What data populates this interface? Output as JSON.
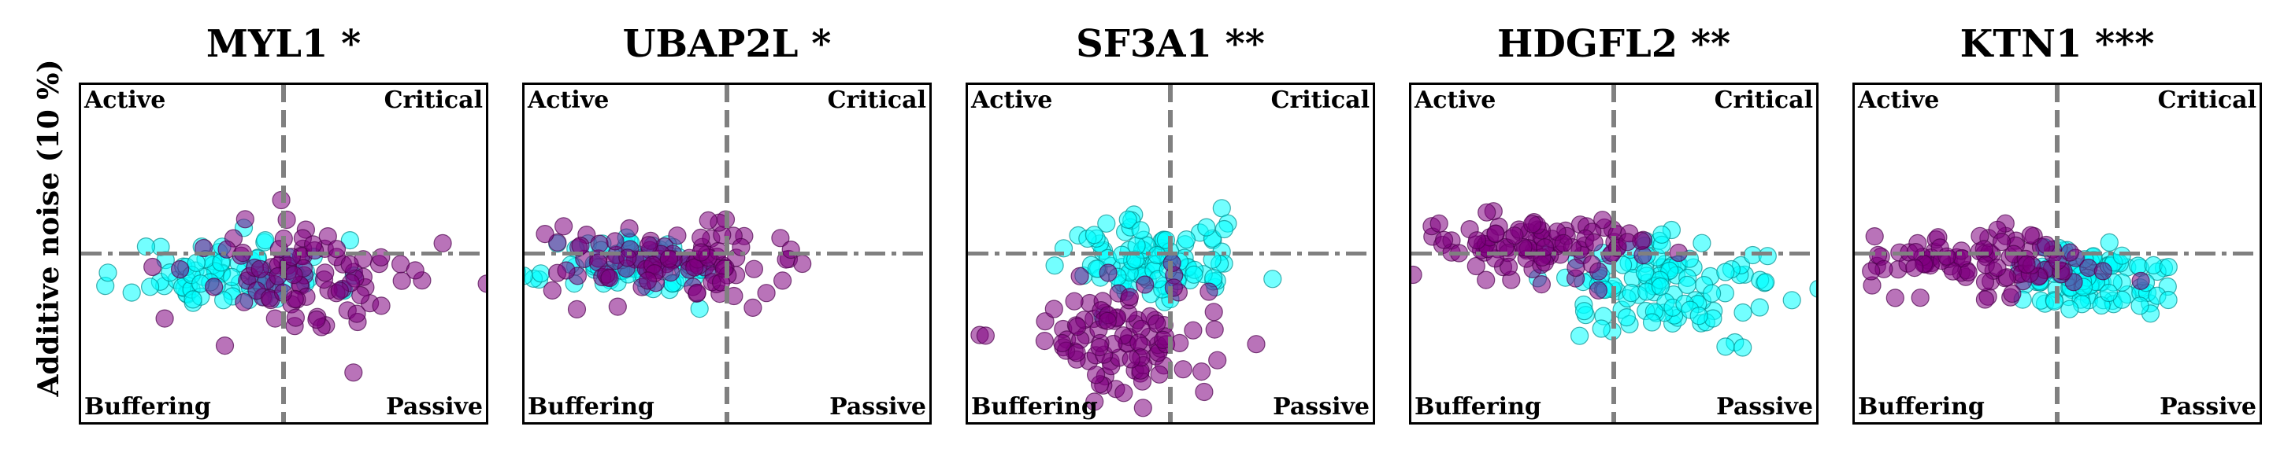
{
  "ylabel": "Additive noise (10 %)",
  "quadrants": {
    "top_left": "Active",
    "top_right": "Critical",
    "bottom_left": "Buffering",
    "bottom_right": "Passive"
  },
  "colors": {
    "series_a": "#00ffff",
    "series_b": "#800080",
    "reference_lines": "#808080"
  },
  "chart_data": [
    {
      "type": "scatter",
      "title": "MYL1 *",
      "xlim": [
        -1,
        1
      ],
      "ylim": [
        -1,
        1
      ],
      "reference_lines": {
        "x": 0,
        "y": 0
      },
      "clusters": [
        {
          "series": "a",
          "cx": -0.25,
          "cy": -0.12,
          "sx": 0.25,
          "sy": 0.1,
          "n": 90,
          "seed": 11
        },
        {
          "series": "b",
          "cx": 0.15,
          "cy": -0.15,
          "sx": 0.3,
          "sy": 0.18,
          "n": 90,
          "seed": 12
        }
      ]
    },
    {
      "type": "scatter",
      "title": "UBAP2L *",
      "xlim": [
        -1,
        1
      ],
      "ylim": [
        -1,
        1
      ],
      "reference_lines": {
        "x": 0,
        "y": 0
      },
      "clusters": [
        {
          "series": "a",
          "cx": -0.42,
          "cy": -0.08,
          "sx": 0.2,
          "sy": 0.08,
          "n": 80,
          "seed": 21
        },
        {
          "series": "b",
          "cx": -0.32,
          "cy": -0.05,
          "sx": 0.28,
          "sy": 0.1,
          "n": 100,
          "seed": 22
        }
      ]
    },
    {
      "type": "scatter",
      "title": "SF3A1 **",
      "xlim": [
        -1,
        1
      ],
      "ylim": [
        -1,
        1
      ],
      "reference_lines": {
        "x": 0,
        "y": 0
      },
      "clusters": [
        {
          "series": "a",
          "cx": -0.1,
          "cy": -0.05,
          "sx": 0.22,
          "sy": 0.13,
          "n": 100,
          "seed": 31
        },
        {
          "series": "b",
          "cx": -0.25,
          "cy": -0.48,
          "sx": 0.25,
          "sy": 0.18,
          "n": 100,
          "seed": 32
        }
      ]
    },
    {
      "type": "scatter",
      "title": "HDGFL2 **",
      "xlim": [
        -1,
        1
      ],
      "ylim": [
        -1,
        1
      ],
      "reference_lines": {
        "x": 0,
        "y": 0
      },
      "clusters": [
        {
          "series": "a",
          "cx": 0.28,
          "cy": -0.2,
          "sx": 0.28,
          "sy": 0.14,
          "n": 110,
          "seed": 41
        },
        {
          "series": "b",
          "cx": -0.42,
          "cy": 0.05,
          "sx": 0.3,
          "sy": 0.1,
          "n": 100,
          "seed": 42
        }
      ]
    },
    {
      "type": "scatter",
      "title": "KTN1 ***",
      "xlim": [
        -1,
        1
      ],
      "ylim": [
        -1,
        1
      ],
      "reference_lines": {
        "x": 0,
        "y": 0
      },
      "clusters": [
        {
          "series": "a",
          "cx": 0.15,
          "cy": -0.15,
          "sx": 0.2,
          "sy": 0.1,
          "n": 100,
          "seed": 51
        },
        {
          "series": "b",
          "cx": -0.38,
          "cy": -0.06,
          "sx": 0.28,
          "sy": 0.1,
          "n": 100,
          "seed": 52
        }
      ]
    }
  ]
}
